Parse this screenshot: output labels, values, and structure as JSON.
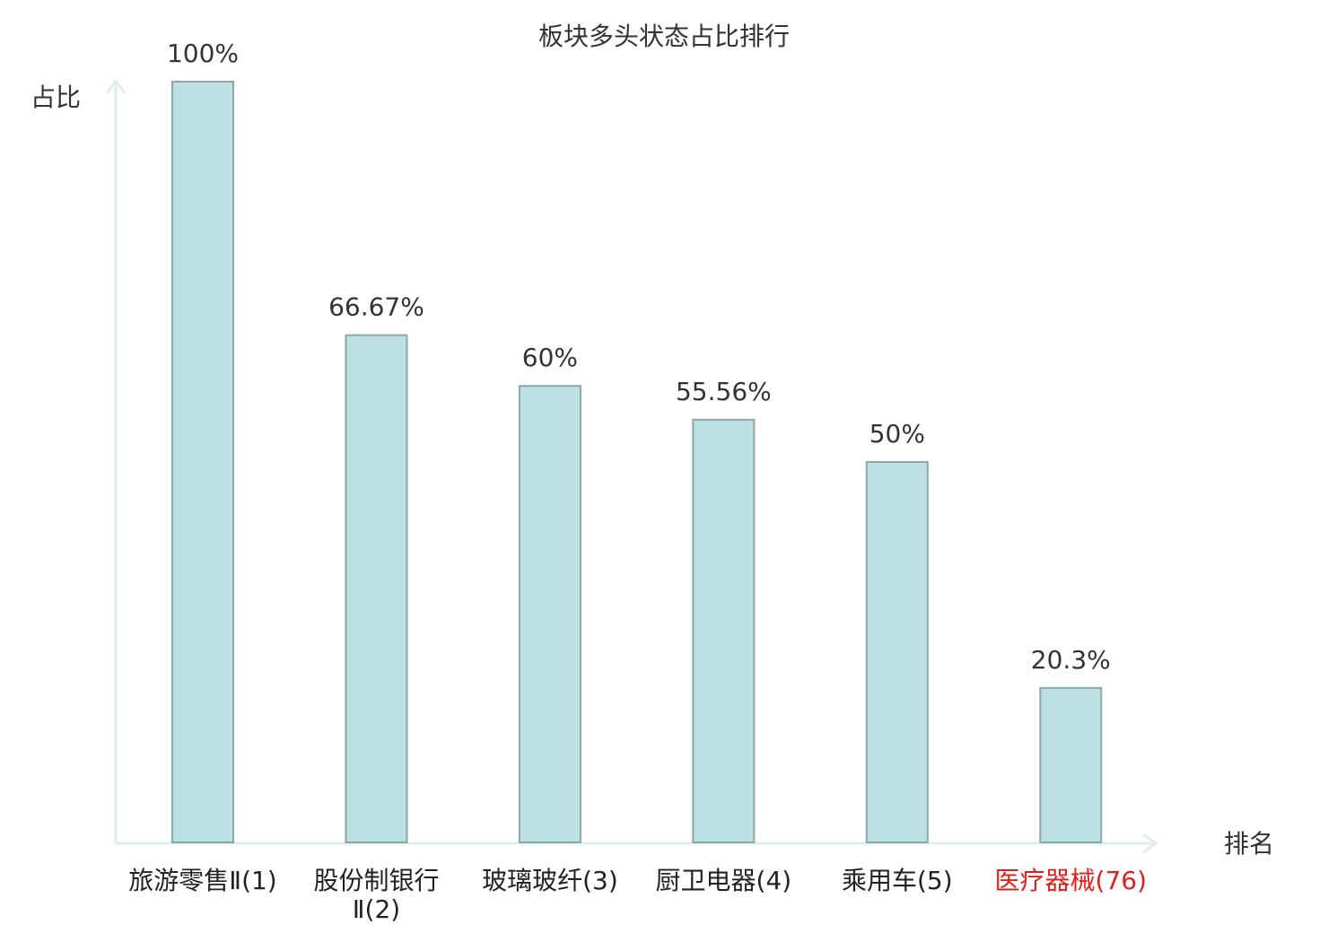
{
  "chart_data": {
    "type": "bar",
    "title": "板块多头状态占比排行",
    "y_label": "占比",
    "x_label": "排名",
    "categories": [
      "旅游零售Ⅱ(1)",
      "股份制银行Ⅱ(2)",
      "玻璃玻纤(3)",
      "厨卫电器(4)",
      "乘用车(5)",
      "医疗器械(76)"
    ],
    "label_colors": [
      "#222222",
      "#222222",
      "#222222",
      "#222222",
      "#222222",
      "#e0201c"
    ],
    "values": [
      100,
      66.67,
      60,
      55.56,
      50,
      20.3
    ],
    "value_labels": [
      "100%",
      "66.67%",
      "60%",
      "55.56%",
      "50%",
      "20.3%"
    ],
    "color": "#bde0e2",
    "edge_color": "#8aa8aa",
    "ylim": [
      0,
      100
    ]
  }
}
